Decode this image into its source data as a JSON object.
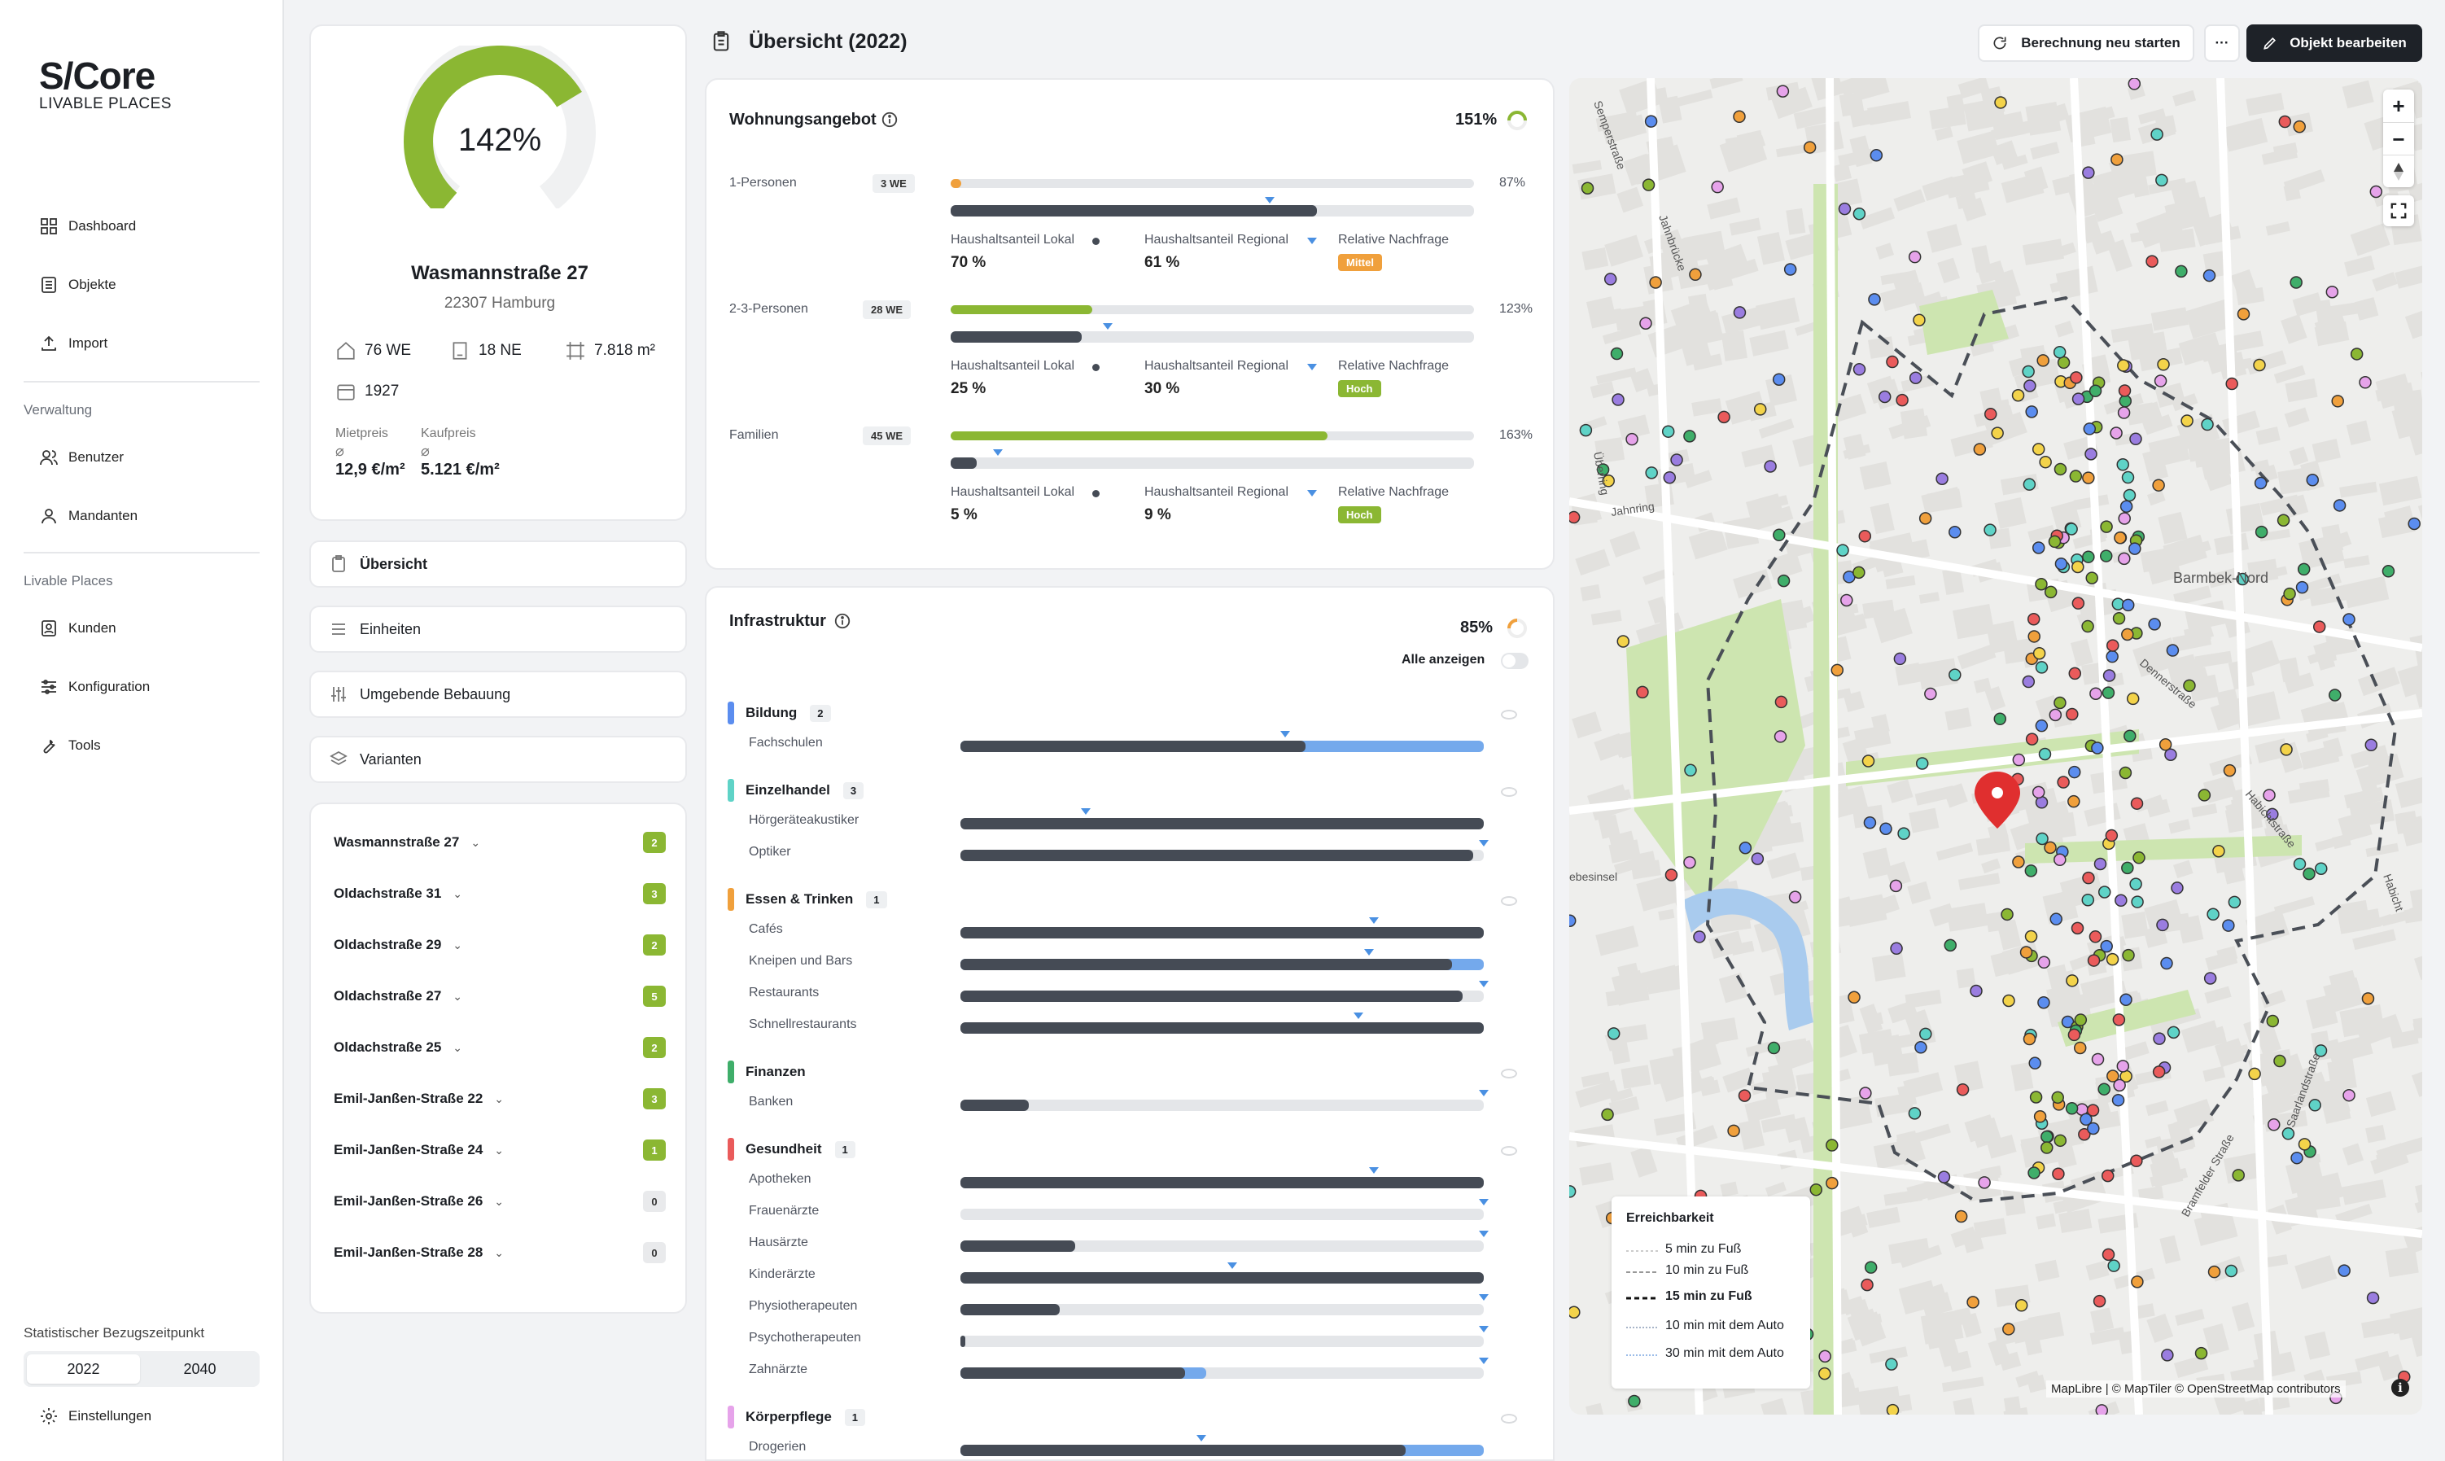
{
  "brand": {
    "name": "S/Core",
    "tagline": "LIVABLE PLACES"
  },
  "nav": {
    "main": [
      "Dashboard",
      "Objekte",
      "Import"
    ],
    "section1": "Verwaltung",
    "admin": [
      "Benutzer",
      "Mandanten"
    ],
    "section2": "Livable Places",
    "lp": [
      "Kunden",
      "Konfiguration",
      "Tools"
    ],
    "stat_label": "Statistischer Bezugszeitpunkt",
    "years": [
      "2022",
      "2040"
    ],
    "settings": "Einstellungen"
  },
  "property": {
    "score": "142%",
    "score_value": 142,
    "name": "Wasmannstraße 27",
    "city": "22307 Hamburg",
    "we": "76 WE",
    "ne": "18 NE",
    "area": "7.818 m²",
    "year": "1927",
    "rent_label": "Mietpreis",
    "rent": "12,9 €/m²",
    "buy_label": "Kaufpreis",
    "buy": "5.121 €/m²",
    "avg_symbol": "⌀"
  },
  "tabs": [
    "Übersicht",
    "Einheiten",
    "Umgebende Bebauung",
    "Varianten"
  ],
  "addresses": [
    {
      "name": "Wasmannstraße 27",
      "count": "2"
    },
    {
      "name": "Oldachstraße 31",
      "count": "3"
    },
    {
      "name": "Oldachstraße 29",
      "count": "2"
    },
    {
      "name": "Oldachstraße 27",
      "count": "5"
    },
    {
      "name": "Oldachstraße 25",
      "count": "2"
    },
    {
      "name": "Emil-Janßen-Straße 22",
      "count": "3"
    },
    {
      "name": "Emil-Janßen-Straße 24",
      "count": "1"
    },
    {
      "name": "Emil-Janßen-Straße 26",
      "count": "0"
    },
    {
      "name": "Emil-Janßen-Straße 28",
      "count": "0"
    }
  ],
  "header": {
    "title": "Übersicht (2022)",
    "recalc": "Berechnung neu starten",
    "more": "···",
    "edit": "Objekt bearbeiten"
  },
  "housing": {
    "title": "Wohnungsangebot",
    "total": "151%",
    "rows": [
      {
        "label": "1-Personen",
        "we": "3 WE",
        "pct": "87%",
        "top": 0.02,
        "topColor": "#f0a03c",
        "bottom": 0.7,
        "marker": 0.61,
        "local_label": "Haushaltsanteil Lokal",
        "local": "70 %",
        "regional_label": "Haushaltsanteil Regional",
        "regional": "61 %",
        "demand_label": "Relative Nachfrage",
        "demand": "Mittel",
        "demandColor": "#f0a03c"
      },
      {
        "label": "2-3-Personen",
        "we": "28 WE",
        "pct": "123%",
        "top": 0.27,
        "topColor": "#8bb733",
        "bottom": 0.25,
        "marker": 0.3,
        "local_label": "Haushaltsanteil Lokal",
        "local": "25 %",
        "regional_label": "Haushaltsanteil Regional",
        "regional": "30 %",
        "demand_label": "Relative Nachfrage",
        "demand": "Hoch",
        "demandColor": "#8bb733"
      },
      {
        "label": "Familien",
        "we": "45 WE",
        "pct": "163%",
        "top": 0.72,
        "topColor": "#8bb733",
        "bottom": 0.05,
        "marker": 0.09,
        "local_label": "Haushaltsanteil Lokal",
        "local": "5 %",
        "regional_label": "Haushaltsanteil Regional",
        "regional": "9 %",
        "demand_label": "Relative Nachfrage",
        "demand": "Hoch",
        "demandColor": "#8bb733"
      }
    ]
  },
  "infra": {
    "title": "Infrastruktur",
    "total": "85%",
    "show_all": "Alle anzeigen",
    "categories": [
      {
        "name": "Bildung",
        "count": "2",
        "color": "#5b8def",
        "items": [
          {
            "name": "Fachschulen",
            "fill": 0.66,
            "blue": 1.0,
            "marker": 0.62
          }
        ]
      },
      {
        "name": "Einzelhandel",
        "count": "3",
        "color": "#5fd3c7",
        "items": [
          {
            "name": "Hörgeräteakustiker",
            "fill": 1.0,
            "blue": 0,
            "marker": 0.24
          },
          {
            "name": "Optiker",
            "fill": 0.98,
            "blue": 0,
            "marker": 1.0
          }
        ]
      },
      {
        "name": "Essen & Trinken",
        "count": "1",
        "color": "#f0a03c",
        "items": [
          {
            "name": "Cafés",
            "fill": 1.0,
            "blue": 0,
            "marker": 0.79
          },
          {
            "name": "Kneipen und Bars",
            "fill": 0.94,
            "blue": 1.0,
            "marker": 0.78
          },
          {
            "name": "Restaurants",
            "fill": 0.96,
            "blue": 0,
            "marker": 1.0
          },
          {
            "name": "Schnellrestaurants",
            "fill": 1.0,
            "blue": 0,
            "marker": 0.76
          }
        ]
      },
      {
        "name": "Finanzen",
        "count": "",
        "color": "#3fae6a",
        "items": [
          {
            "name": "Banken",
            "fill": 0.13,
            "blue": 0,
            "marker": 1.0
          }
        ]
      },
      {
        "name": "Gesundheit",
        "count": "1",
        "color": "#ea5b5b",
        "items": [
          {
            "name": "Apotheken",
            "fill": 1.0,
            "blue": 0,
            "marker": 0.79
          },
          {
            "name": "Frauenärzte",
            "fill": 0,
            "blue": 0,
            "marker": 1.0
          },
          {
            "name": "Hausärzte",
            "fill": 0.22,
            "blue": 0,
            "marker": 1.0
          },
          {
            "name": "Kinderärzte",
            "fill": 1.0,
            "blue": 0,
            "marker": 0.52
          },
          {
            "name": "Physiotherapeuten",
            "fill": 0.19,
            "blue": 0,
            "marker": 1.0
          },
          {
            "name": "Psychotherapeuten",
            "fill": 0.01,
            "blue": 0,
            "marker": 1.0
          },
          {
            "name": "Zahnärzte",
            "fill": 0.43,
            "blue": 0.47,
            "marker": 1.0
          }
        ]
      },
      {
        "name": "Körperpflege",
        "count": "1",
        "color": "#e6a3ea",
        "items": [
          {
            "name": "Drogerien",
            "fill": 0.85,
            "blue": 1.0,
            "marker": 0.46
          }
        ]
      }
    ]
  },
  "map": {
    "legend_title": "Erreichbarkeit",
    "legend": [
      "5 min zu Fuß",
      "10 min zu Fuß",
      "15 min zu Fuß",
      "10 min mit dem Auto",
      "30 min mit dem Auto"
    ],
    "attribution": "MapLibre | © MapTiler © OpenStreetMap contributors",
    "labels": [
      "Barmbek-Nord",
      "Jahnring",
      "Jahnbrücke",
      "Dennerstraße",
      "Habichtstraße",
      "Bramfelder Straße",
      "Saarlandstraße",
      "Semperstraße",
      "ebesinsel",
      "Überring",
      "Habicht"
    ],
    "zoom_in": "+",
    "zoom_out": "−"
  }
}
